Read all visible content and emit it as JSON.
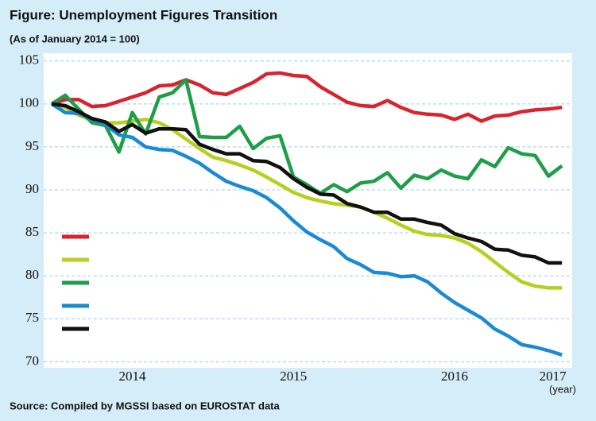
{
  "chart_data": {
    "type": "line",
    "title": "Figure:  Unemployment Figures Transition",
    "subtitle": "(As of January 2014 = 100)",
    "x_label": "(year)",
    "source": "Source: Compiled by MGSSI based on EUROSTAT data",
    "x": [
      2014,
      2014.083,
      2014.167,
      2014.25,
      2014.333,
      2014.417,
      2014.5,
      2014.583,
      2014.667,
      2014.75,
      2014.833,
      2014.917,
      2015,
      2015.083,
      2015.167,
      2015.25,
      2015.333,
      2015.417,
      2015.5,
      2015.583,
      2015.667,
      2015.75,
      2015.833,
      2015.917,
      2016,
      2016.083,
      2016.167,
      2016.25,
      2016.333,
      2016.417,
      2016.5,
      2016.583,
      2016.667,
      2016.75,
      2016.833,
      2016.917,
      2017,
      2017.083,
      2017.167
    ],
    "xlim": [
      2013.95,
      2017.23
    ],
    "xticks": [
      {
        "value": 2014.5,
        "label": "2014"
      },
      {
        "value": 2015.5,
        "label": "2015"
      },
      {
        "value": 2016.5,
        "label": "2016"
      },
      {
        "value": 2017.11,
        "label": "2017"
      }
    ],
    "ylim": [
      69.3,
      105.9
    ],
    "yticks": [
      70,
      75,
      80,
      85,
      90,
      95,
      100,
      105
    ],
    "grid": true,
    "series": [
      {
        "color": "#d7242f",
        "values": [
          100,
          100.5,
          100.5,
          99.7,
          99.8,
          100.3,
          100.8,
          101.3,
          102.1,
          102.2,
          102.8,
          102.2,
          101.3,
          101.1,
          101.8,
          102.5,
          103.5,
          103.6,
          103.3,
          103.2,
          102,
          101.1,
          100.2,
          99.8,
          99.7,
          100.4,
          99.6,
          99,
          98.8,
          98.7,
          98.2,
          98.8,
          98,
          98.6,
          98.7,
          99.1,
          99.3,
          99.4,
          99.6
        ]
      },
      {
        "color": "#b7cf1f",
        "values": [
          100,
          99.6,
          98.7,
          98.1,
          97.8,
          97.8,
          98,
          98.2,
          97.8,
          97,
          95.9,
          94.8,
          93.8,
          93.4,
          92.9,
          92.3,
          91.5,
          90.6,
          89.7,
          89.1,
          88.7,
          88.4,
          88.2,
          88,
          87.4,
          86.7,
          85.9,
          85.2,
          84.8,
          84.7,
          84.4,
          83.8,
          82.8,
          81.6,
          80.4,
          79.3,
          78.8,
          78.6,
          78.6
        ]
      },
      {
        "color": "#1f9e48",
        "values": [
          100,
          101,
          99.4,
          97.8,
          97.5,
          94.4,
          99,
          96.5,
          100.8,
          101.3,
          102.8,
          96.2,
          96.1,
          96.1,
          97.4,
          94.8,
          96,
          96.3,
          91.5,
          90.6,
          89.6,
          90.6,
          89.8,
          90.8,
          91,
          92,
          90.2,
          91.7,
          91.3,
          92.3,
          91.6,
          91.3,
          93.5,
          92.7,
          94.9,
          94.2,
          94,
          91.6,
          92.8
        ]
      },
      {
        "color": "#1a8bd2",
        "values": [
          100,
          99,
          98.9,
          98.2,
          97.6,
          96.4,
          96.1,
          95,
          94.7,
          94.6,
          93.9,
          93.1,
          92,
          91,
          90.4,
          89.9,
          89.1,
          87.9,
          86.4,
          85.1,
          84.2,
          83.4,
          82,
          81.3,
          80.4,
          80.3,
          79.9,
          80,
          79.3,
          78,
          76.9,
          76,
          75.1,
          73.8,
          73,
          72,
          71.7,
          71.3,
          70.8
        ]
      },
      {
        "color": "#111111",
        "values": [
          100,
          99.8,
          99.1,
          98.3,
          97.9,
          96.8,
          97.6,
          96.6,
          97.1,
          97.1,
          97,
          95.3,
          94.7,
          94.2,
          94.2,
          93.4,
          93.3,
          92.6,
          91.3,
          90.3,
          89.5,
          89.4,
          88.4,
          88,
          87.4,
          87.4,
          86.6,
          86.6,
          86.2,
          85.9,
          84.9,
          84.4,
          84,
          83.1,
          83,
          82.4,
          82.2,
          81.5,
          81.5
        ]
      }
    ]
  }
}
